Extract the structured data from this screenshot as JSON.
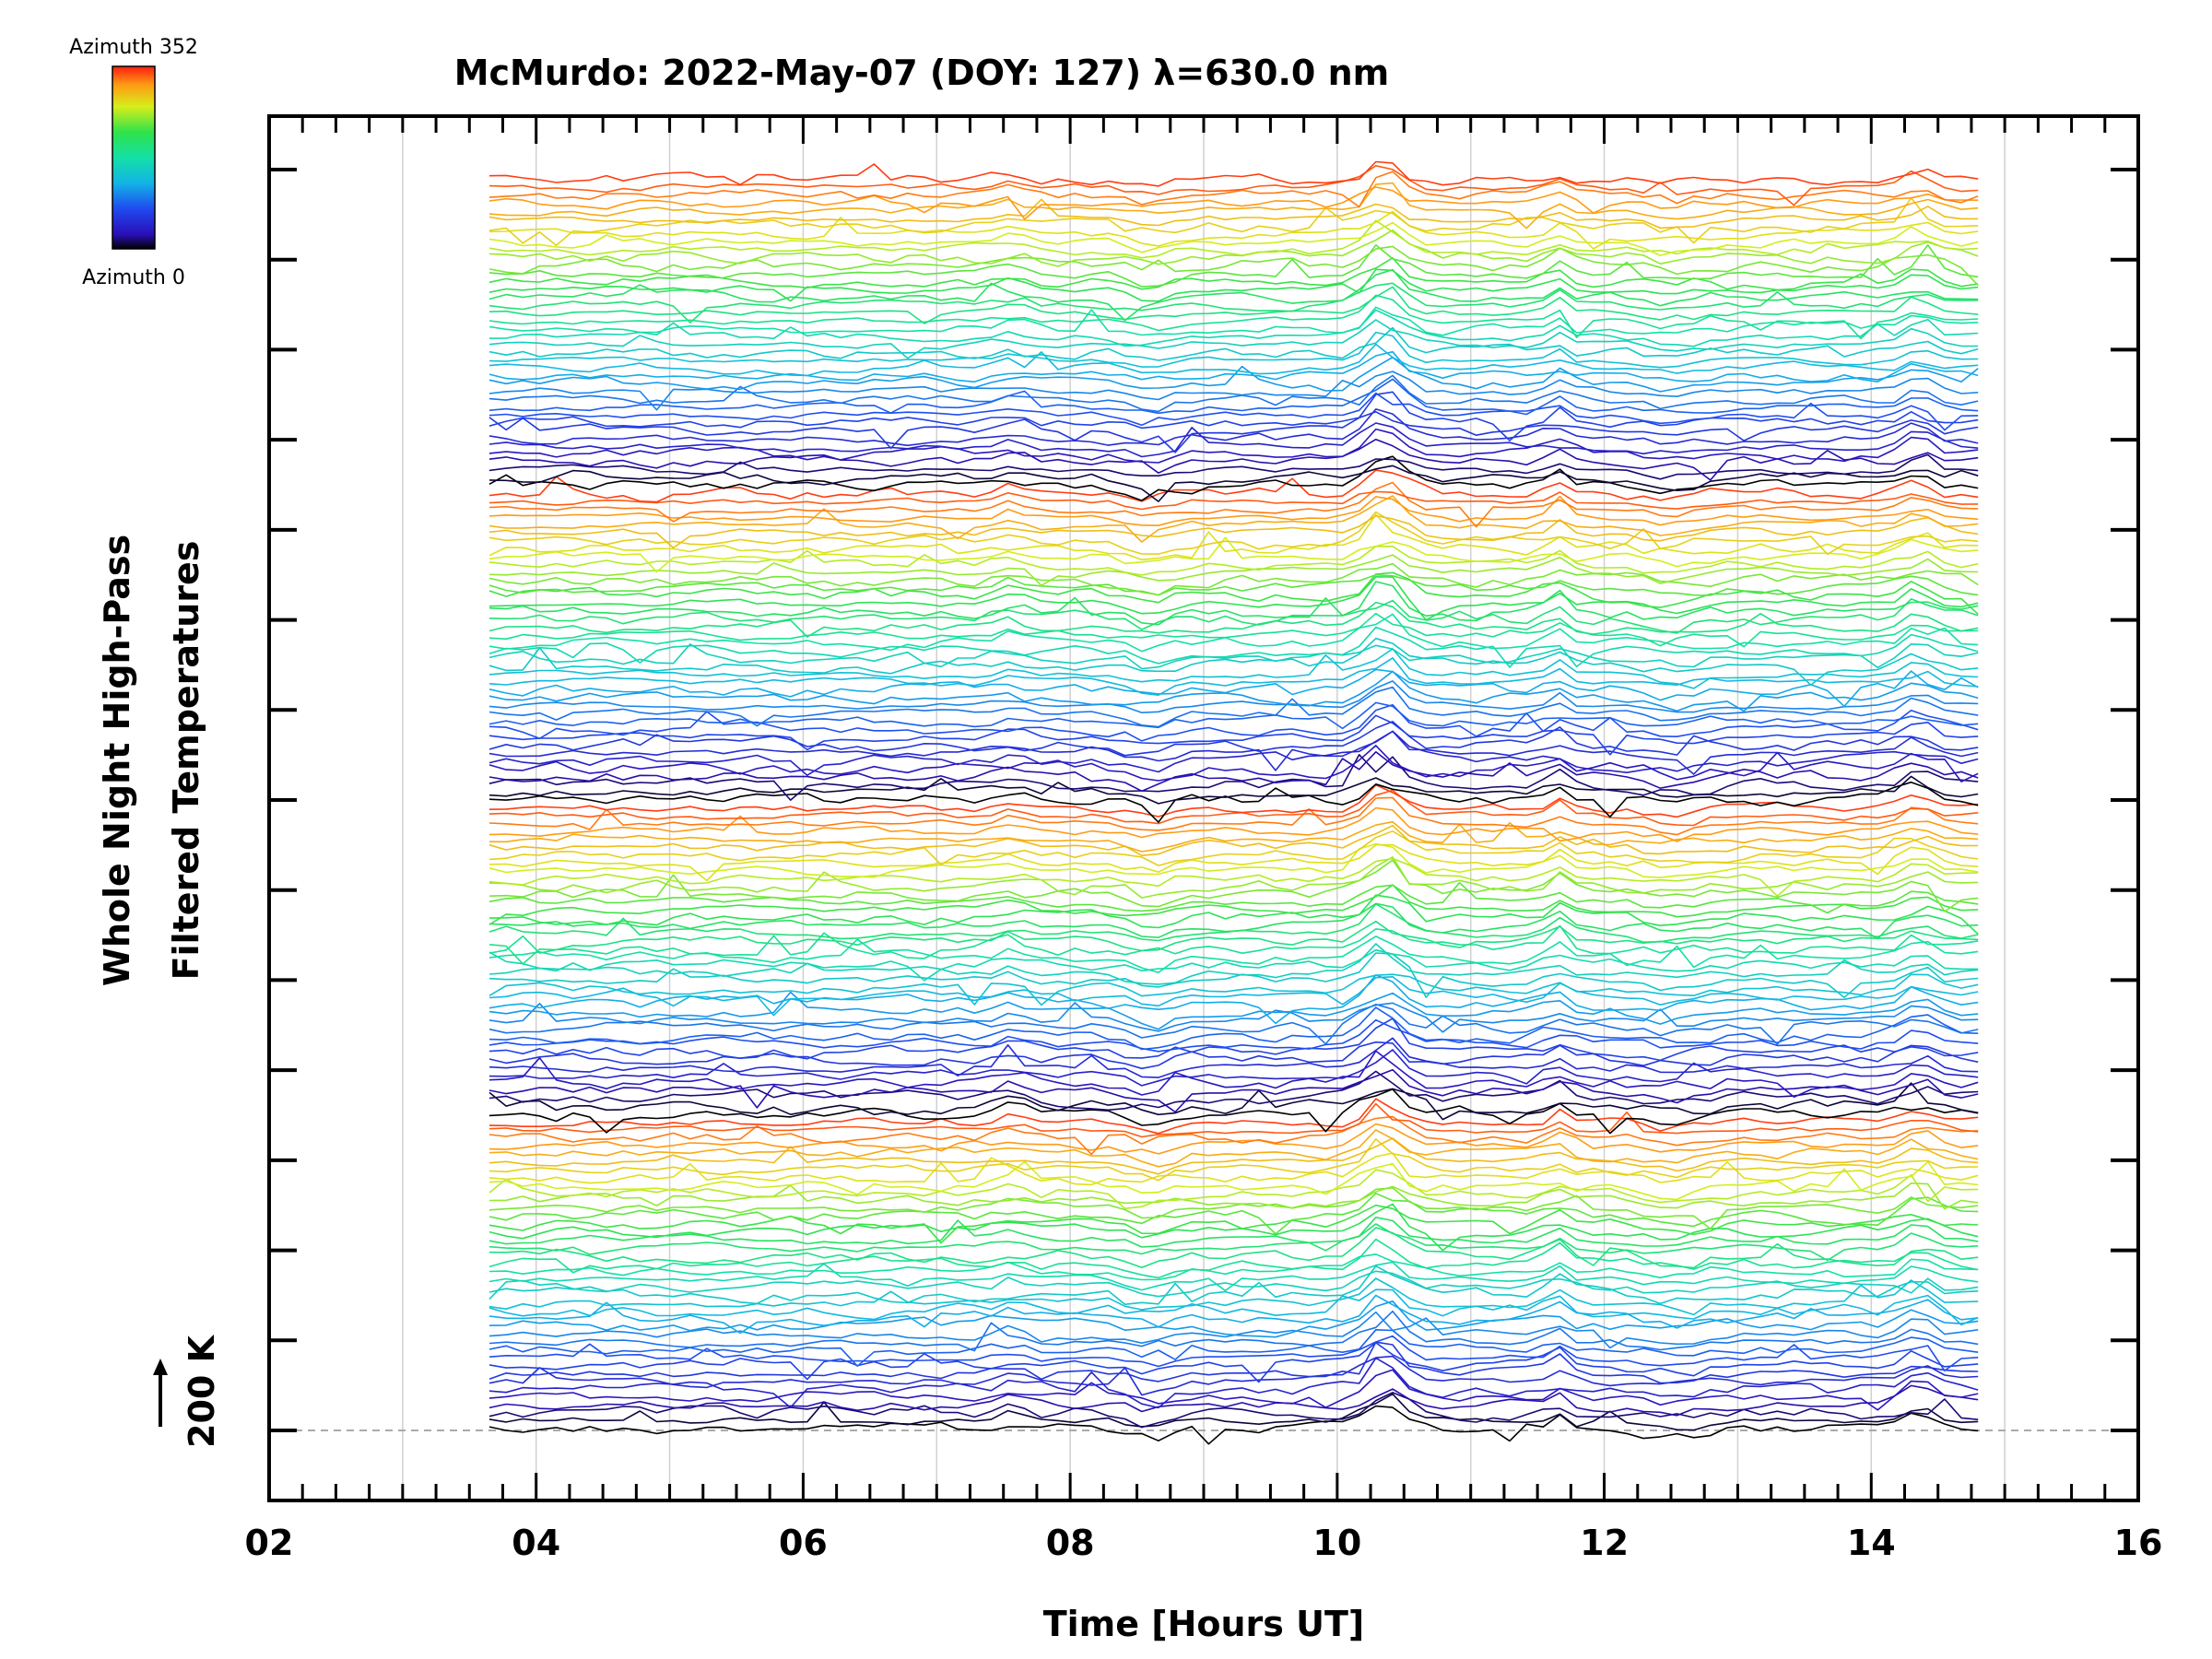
{
  "chart_data": {
    "type": "line",
    "title": "McMurdo: 2022-May-07 (DOY: 127) λ=630.0 nm",
    "xlabel": "Time [Hours UT]",
    "ylabel_line1": "Whole Night High-Pass",
    "ylabel_line2": "Filtered Temperatures",
    "scale_label": "200 K",
    "xlim": [
      2,
      16
    ],
    "x_tick_labels": [
      "02",
      "04",
      "06",
      "08",
      "10",
      "12",
      "14",
      "16"
    ],
    "x_tick_values": [
      2,
      4,
      6,
      8,
      10,
      12,
      14,
      16
    ],
    "y_tick_count": 15,
    "data_time_range": [
      3.65,
      14.8
    ],
    "series_count": 160,
    "grid": "vertical gridlines at each hour",
    "colorbar": {
      "label_top": "Azimuth  352",
      "label_bottom": "Azimuth  0",
      "min": 0,
      "max": 352,
      "colormap": "rainbow"
    },
    "colors": {
      "axis": "#000000",
      "grid": "#d0d0d0",
      "baseline": "#aaaaaa"
    }
  }
}
